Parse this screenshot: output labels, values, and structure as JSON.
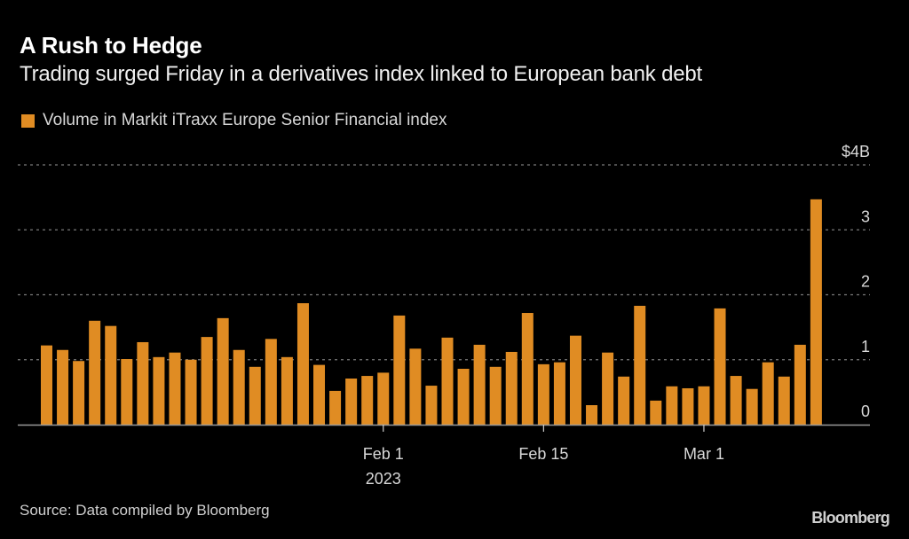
{
  "header": {
    "title": "A Rush to Hedge",
    "subtitle": "Trading surged Friday in a derivatives index linked to European bank debt"
  },
  "footer": {
    "source": "Source: Data compiled by Bloomberg",
    "logo": "Bloomberg"
  },
  "colors": {
    "bar": "#E08C23",
    "background": "#000000",
    "gridline": "#7a7a7a",
    "baseline": "#9a9a9a"
  },
  "chart_data": {
    "type": "bar",
    "title": "A Rush to Hedge",
    "subtitle": "Trading surged Friday in a derivatives index linked to European bank debt",
    "xlabel": "",
    "ylabel": "",
    "legend": [
      {
        "name": "Volume in Markit iTraxx Europe Senior Financial index",
        "color": "#E08C23"
      }
    ],
    "legend_position": "top-left",
    "ylim": [
      0,
      4
    ],
    "yticks": [
      {
        "value": 0,
        "label": "0"
      },
      {
        "value": 1,
        "label": "1"
      },
      {
        "value": 2,
        "label": "2"
      },
      {
        "value": 3,
        "label": "3"
      },
      {
        "value": 4,
        "label": "$4B"
      }
    ],
    "y_axis_side": "right",
    "grid": true,
    "xticks": [
      {
        "bar_index": 21,
        "label": "Feb 1",
        "sublabel": "2023"
      },
      {
        "bar_index": 31,
        "label": "Feb 15",
        "sublabel": ""
      },
      {
        "bar_index": 41,
        "label": "Mar 1",
        "sublabel": ""
      }
    ],
    "series": [
      {
        "name": "Volume in Markit iTraxx Europe Senior Financial index",
        "unit": "$B",
        "values": [
          1.22,
          1.15,
          0.98,
          1.6,
          1.52,
          1.01,
          1.27,
          1.04,
          1.11,
          1.0,
          1.35,
          1.64,
          1.15,
          0.89,
          1.32,
          1.04,
          1.87,
          0.92,
          0.52,
          0.71,
          0.75,
          0.8,
          1.68,
          1.17,
          0.6,
          1.34,
          0.86,
          1.23,
          0.89,
          1.12,
          1.72,
          0.93,
          0.96,
          1.37,
          0.3,
          1.11,
          0.74,
          1.83,
          0.37,
          0.59,
          0.56,
          0.59,
          1.79,
          0.75,
          0.55,
          0.96,
          0.74,
          1.23,
          3.47
        ]
      }
    ]
  }
}
